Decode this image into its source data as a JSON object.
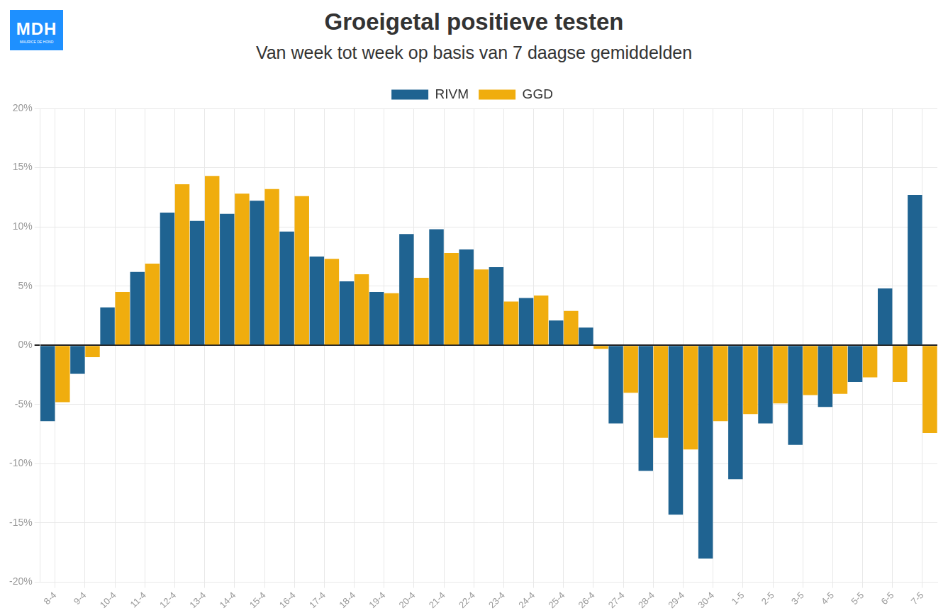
{
  "logo": {
    "text": "MDH",
    "subtext": "MAURICE DE HOND"
  },
  "chart_data": {
    "type": "bar",
    "title": "Groeigetal positieve testen",
    "subtitle": "Van week tot week op basis van 7 daagse gemiddelden",
    "categories": [
      "8-4",
      "9-4",
      "10-4",
      "11-4",
      "12-4",
      "13-4",
      "14-4",
      "15-4",
      "16-4",
      "17-4",
      "18-4",
      "19-4",
      "20-4",
      "21-4",
      "22-4",
      "23-4",
      "24-4",
      "25-4",
      "26-4",
      "27-4",
      "28-4",
      "29-4",
      "30-4",
      "1-5",
      "2-5",
      "3-5",
      "4-5",
      "5-5",
      "6-5",
      "7-5"
    ],
    "series": [
      {
        "name": "RIVM",
        "color": "#1f6391",
        "values": [
          -6.4,
          -2.4,
          3.2,
          6.2,
          11.2,
          10.5,
          11.1,
          12.2,
          9.6,
          7.5,
          5.4,
          4.5,
          9.4,
          9.8,
          8.1,
          6.6,
          4.0,
          2.1,
          1.5,
          -6.6,
          -10.6,
          -14.3,
          -18.0,
          -11.3,
          -6.6,
          -8.4,
          -5.2,
          -3.1,
          4.8,
          12.7
        ]
      },
      {
        "name": "GGD",
        "color": "#f0ad0e",
        "values": [
          -4.8,
          -1.0,
          4.5,
          6.9,
          13.6,
          14.3,
          12.8,
          13.2,
          12.6,
          7.3,
          6.0,
          4.4,
          5.7,
          7.8,
          6.4,
          3.7,
          4.2,
          2.9,
          -0.3,
          -4.0,
          -7.8,
          -8.8,
          -6.4,
          -5.8,
          -4.9,
          -4.2,
          -4.1,
          -2.7,
          -3.1,
          -7.4
        ]
      }
    ],
    "ylim": [
      -20,
      20
    ],
    "yticks": [
      {
        "value": -20,
        "label": "-20%"
      },
      {
        "value": -15,
        "label": "-15%"
      },
      {
        "value": -10,
        "label": "-10%"
      },
      {
        "value": -5,
        "label": "-5%"
      },
      {
        "value": 0,
        "label": "0%"
      },
      {
        "value": 5,
        "label": "5%"
      },
      {
        "value": 10,
        "label": "10%"
      },
      {
        "value": 15,
        "label": "15%"
      },
      {
        "value": 20,
        "label": "20%"
      }
    ],
    "grid": true,
    "legend": "top"
  }
}
